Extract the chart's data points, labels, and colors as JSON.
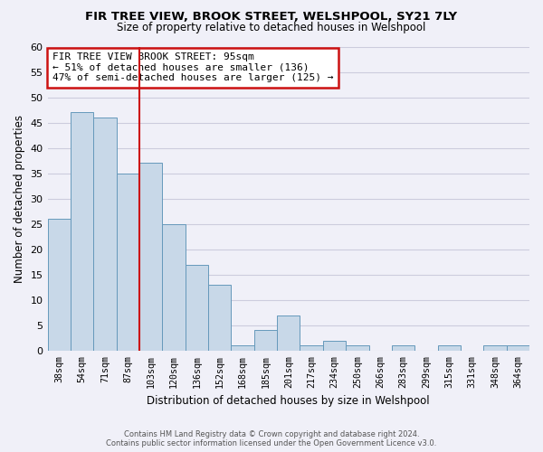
{
  "title": "FIR TREE VIEW, BROOK STREET, WELSHPOOL, SY21 7LY",
  "subtitle": "Size of property relative to detached houses in Welshpool",
  "xlabel": "Distribution of detached houses by size in Welshpool",
  "ylabel": "Number of detached properties",
  "bar_labels": [
    "38sqm",
    "54sqm",
    "71sqm",
    "87sqm",
    "103sqm",
    "120sqm",
    "136sqm",
    "152sqm",
    "168sqm",
    "185sqm",
    "201sqm",
    "217sqm",
    "234sqm",
    "250sqm",
    "266sqm",
    "283sqm",
    "299sqm",
    "315sqm",
    "331sqm",
    "348sqm",
    "364sqm"
  ],
  "bar_values": [
    26,
    47,
    46,
    35,
    37,
    25,
    17,
    13,
    1,
    4,
    7,
    1,
    2,
    1,
    0,
    1,
    0,
    1,
    0,
    1,
    1
  ],
  "bar_color": "#c8d8e8",
  "bar_edge_color": "#6699bb",
  "ylim": [
    0,
    60
  ],
  "yticks": [
    0,
    5,
    10,
    15,
    20,
    25,
    30,
    35,
    40,
    45,
    50,
    55,
    60
  ],
  "property_line_x": 3.5,
  "annotation_title": "FIR TREE VIEW BROOK STREET: 95sqm",
  "annotation_line1": "← 51% of detached houses are smaller (136)",
  "annotation_line2": "47% of semi-detached houses are larger (125) →",
  "annotation_box_color": "#ffffff",
  "annotation_border_color": "#cc1111",
  "property_line_color": "#cc1111",
  "grid_color": "#ccccdd",
  "footer_line1": "Contains HM Land Registry data © Crown copyright and database right 2024.",
  "footer_line2": "Contains public sector information licensed under the Open Government Licence v3.0.",
  "bg_color": "#f0f0f8"
}
